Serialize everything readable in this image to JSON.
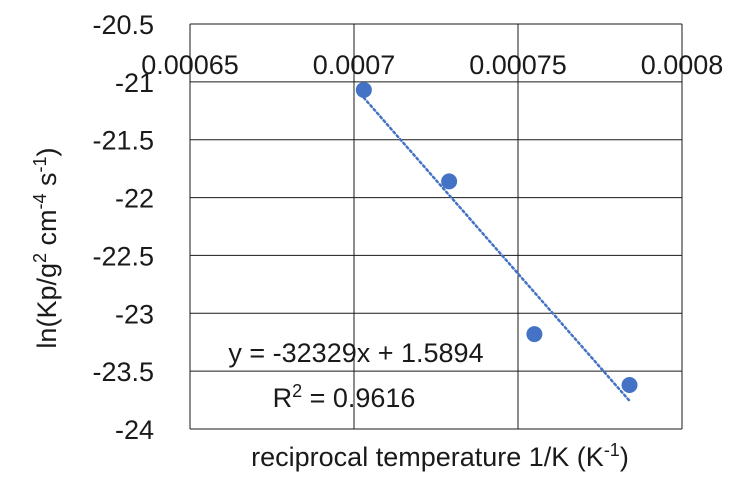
{
  "chart_data": {
    "type": "scatter",
    "title": "",
    "xlabel": "reciprocal temperature 1/K (K",
    "xlabel_sup": "-1",
    "xlabel_tail": ")",
    "ylabel_parts": {
      "p1": "ln(Kp/g",
      "sup1": "2",
      "p2": " cm",
      "sup2": "-4",
      "p3": " s",
      "sup3": "-1",
      "p4": ")"
    },
    "xlim": [
      0.00065,
      0.0008
    ],
    "ylim": [
      -24,
      -20.5
    ],
    "x_ticks": [
      0.00065,
      0.0007,
      0.00075,
      0.0008
    ],
    "x_tick_labels": [
      "0.00065",
      "0.0007",
      "0.00075",
      "0.0008"
    ],
    "y_ticks": [
      -20.5,
      -21,
      -21.5,
      -22,
      -22.5,
      -23,
      -23.5,
      -24
    ],
    "y_tick_labels": [
      "-20.5",
      "-21",
      "-21.5",
      "-22",
      "-22.5",
      "-23",
      "-23.5",
      "-24"
    ],
    "x_axis_at_y": -21,
    "grid": true,
    "legend": "none",
    "series": [
      {
        "x": [
          0.000703,
          0.000729,
          0.000755,
          0.000784
        ],
        "y": [
          -21.07,
          -21.86,
          -23.18,
          -23.62
        ]
      }
    ],
    "trendline": {
      "type": "linear",
      "slope": -32329,
      "intercept": 1.5894,
      "x_range": [
        0.000703,
        0.000784
      ],
      "style": "dotted"
    },
    "annotations": {
      "equation": "y = -32329x + 1.5894",
      "r2_prefix": "R",
      "r2_sup": "2",
      "r2_suffix": " = 0.9616"
    },
    "colors": {
      "marker": "#4472C4",
      "trendline": "#4472C4",
      "grid": "#1a1a1a",
      "text": "#1a1a1a"
    }
  }
}
